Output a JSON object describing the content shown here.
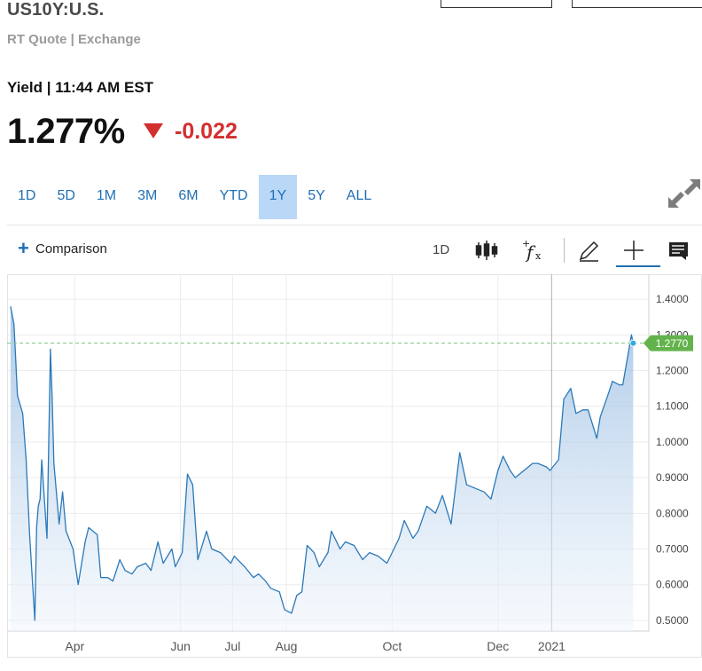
{
  "header": {
    "symbol": "US10Y:U.S.",
    "subtitle": "RT Quote | Exchange",
    "yield_label": "Yield | 11:44 AM EST",
    "price": "1.277%",
    "change": "-0.022"
  },
  "ranges": [
    "1D",
    "5D",
    "1M",
    "3M",
    "6M",
    "YTD",
    "1Y",
    "5Y",
    "ALL"
  ],
  "active_range": "1Y",
  "toolbar": {
    "comparison_label": "Comparison",
    "interval_label": "1D",
    "icons": [
      "candlestick-icon",
      "function-fx-icon",
      "pencil-icon",
      "crosshair-icon",
      "news-icon"
    ]
  },
  "colors": {
    "accent": "#1f6fb5",
    "negative": "#d32f2f",
    "active_tab_bg": "#b9d7f6",
    "line": "#2b79b8",
    "last_value_badge": "#63b34c"
  },
  "chart_data": {
    "type": "area",
    "title": "",
    "xlabel": "",
    "ylabel": "",
    "ylim": [
      0.47,
      1.47
    ],
    "y_ticks": [
      "1.4000",
      "1.3000",
      "1.2000",
      "1.1000",
      "1.0000",
      "0.9000",
      "0.8000",
      "0.7000",
      "0.6000",
      "0.5000"
    ],
    "x_ticks": [
      "Apr",
      "Jun",
      "Jul",
      "Aug",
      "Oct",
      "Dec",
      "2021"
    ],
    "last_value_label": "1.2770",
    "last_value": 1.277,
    "grid": true,
    "series": [
      {
        "points": [
          [
            "2020-02-24",
            1.38
          ],
          [
            "2020-02-26",
            1.33
          ],
          [
            "2020-02-28",
            1.13
          ],
          [
            "2020-03-02",
            1.08
          ],
          [
            "2020-03-04",
            0.95
          ],
          [
            "2020-03-06",
            0.74
          ],
          [
            "2020-03-09",
            0.5
          ],
          [
            "2020-03-10",
            0.76
          ],
          [
            "2020-03-11",
            0.82
          ],
          [
            "2020-03-12",
            0.84
          ],
          [
            "2020-03-13",
            0.95
          ],
          [
            "2020-03-16",
            0.73
          ],
          [
            "2020-03-17",
            1.0
          ],
          [
            "2020-03-18",
            1.26
          ],
          [
            "2020-03-19",
            1.12
          ],
          [
            "2020-03-20",
            0.94
          ],
          [
            "2020-03-23",
            0.77
          ],
          [
            "2020-03-25",
            0.86
          ],
          [
            "2020-03-27",
            0.75
          ],
          [
            "2020-03-31",
            0.7
          ],
          [
            "2020-04-03",
            0.6
          ],
          [
            "2020-04-07",
            0.72
          ],
          [
            "2020-04-09",
            0.76
          ],
          [
            "2020-04-14",
            0.74
          ],
          [
            "2020-04-16",
            0.62
          ],
          [
            "2020-04-20",
            0.62
          ],
          [
            "2020-04-23",
            0.61
          ],
          [
            "2020-04-27",
            0.67
          ],
          [
            "2020-04-30",
            0.64
          ],
          [
            "2020-05-04",
            0.63
          ],
          [
            "2020-05-07",
            0.65
          ],
          [
            "2020-05-12",
            0.66
          ],
          [
            "2020-05-15",
            0.64
          ],
          [
            "2020-05-19",
            0.72
          ],
          [
            "2020-05-22",
            0.66
          ],
          [
            "2020-05-27",
            0.7
          ],
          [
            "2020-05-29",
            0.65
          ],
          [
            "2020-06-02",
            0.69
          ],
          [
            "2020-06-05",
            0.91
          ],
          [
            "2020-06-08",
            0.88
          ],
          [
            "2020-06-11",
            0.67
          ],
          [
            "2020-06-16",
            0.75
          ],
          [
            "2020-06-19",
            0.7
          ],
          [
            "2020-06-24",
            0.69
          ],
          [
            "2020-06-30",
            0.66
          ],
          [
            "2020-07-02",
            0.68
          ],
          [
            "2020-07-08",
            0.65
          ],
          [
            "2020-07-13",
            0.62
          ],
          [
            "2020-07-16",
            0.63
          ],
          [
            "2020-07-20",
            0.61
          ],
          [
            "2020-07-23",
            0.59
          ],
          [
            "2020-07-28",
            0.58
          ],
          [
            "2020-07-31",
            0.53
          ],
          [
            "2020-08-04",
            0.52
          ],
          [
            "2020-08-07",
            0.57
          ],
          [
            "2020-08-10",
            0.58
          ],
          [
            "2020-08-13",
            0.71
          ],
          [
            "2020-08-17",
            0.69
          ],
          [
            "2020-08-20",
            0.65
          ],
          [
            "2020-08-25",
            0.69
          ],
          [
            "2020-08-27",
            0.75
          ],
          [
            "2020-09-01",
            0.7
          ],
          [
            "2020-09-04",
            0.72
          ],
          [
            "2020-09-09",
            0.71
          ],
          [
            "2020-09-14",
            0.67
          ],
          [
            "2020-09-18",
            0.69
          ],
          [
            "2020-09-23",
            0.68
          ],
          [
            "2020-09-28",
            0.66
          ],
          [
            "2020-10-01",
            0.69
          ],
          [
            "2020-10-05",
            0.73
          ],
          [
            "2020-10-08",
            0.78
          ],
          [
            "2020-10-13",
            0.73
          ],
          [
            "2020-10-16",
            0.75
          ],
          [
            "2020-10-21",
            0.82
          ],
          [
            "2020-10-26",
            0.8
          ],
          [
            "2020-10-30",
            0.85
          ],
          [
            "2020-11-04",
            0.77
          ],
          [
            "2020-11-09",
            0.97
          ],
          [
            "2020-11-13",
            0.88
          ],
          [
            "2020-11-18",
            0.87
          ],
          [
            "2020-11-23",
            0.86
          ],
          [
            "2020-11-27",
            0.84
          ],
          [
            "2020-12-01",
            0.92
          ],
          [
            "2020-12-04",
            0.96
          ],
          [
            "2020-12-08",
            0.92
          ],
          [
            "2020-12-11",
            0.9
          ],
          [
            "2020-12-16",
            0.92
          ],
          [
            "2020-12-21",
            0.94
          ],
          [
            "2020-12-24",
            0.94
          ],
          [
            "2020-12-29",
            0.93
          ],
          [
            "2020-12-31",
            0.92
          ],
          [
            "2021-01-05",
            0.95
          ],
          [
            "2021-01-08",
            1.12
          ],
          [
            "2021-01-12",
            1.15
          ],
          [
            "2021-01-15",
            1.08
          ],
          [
            "2021-01-19",
            1.09
          ],
          [
            "2021-01-22",
            1.09
          ],
          [
            "2021-01-27",
            1.01
          ],
          [
            "2021-01-29",
            1.07
          ],
          [
            "2021-02-03",
            1.14
          ],
          [
            "2021-02-05",
            1.17
          ],
          [
            "2021-02-09",
            1.16
          ],
          [
            "2021-02-11",
            1.16
          ],
          [
            "2021-02-16",
            1.3
          ],
          [
            "2021-02-17",
            1.277
          ]
        ]
      }
    ]
  }
}
